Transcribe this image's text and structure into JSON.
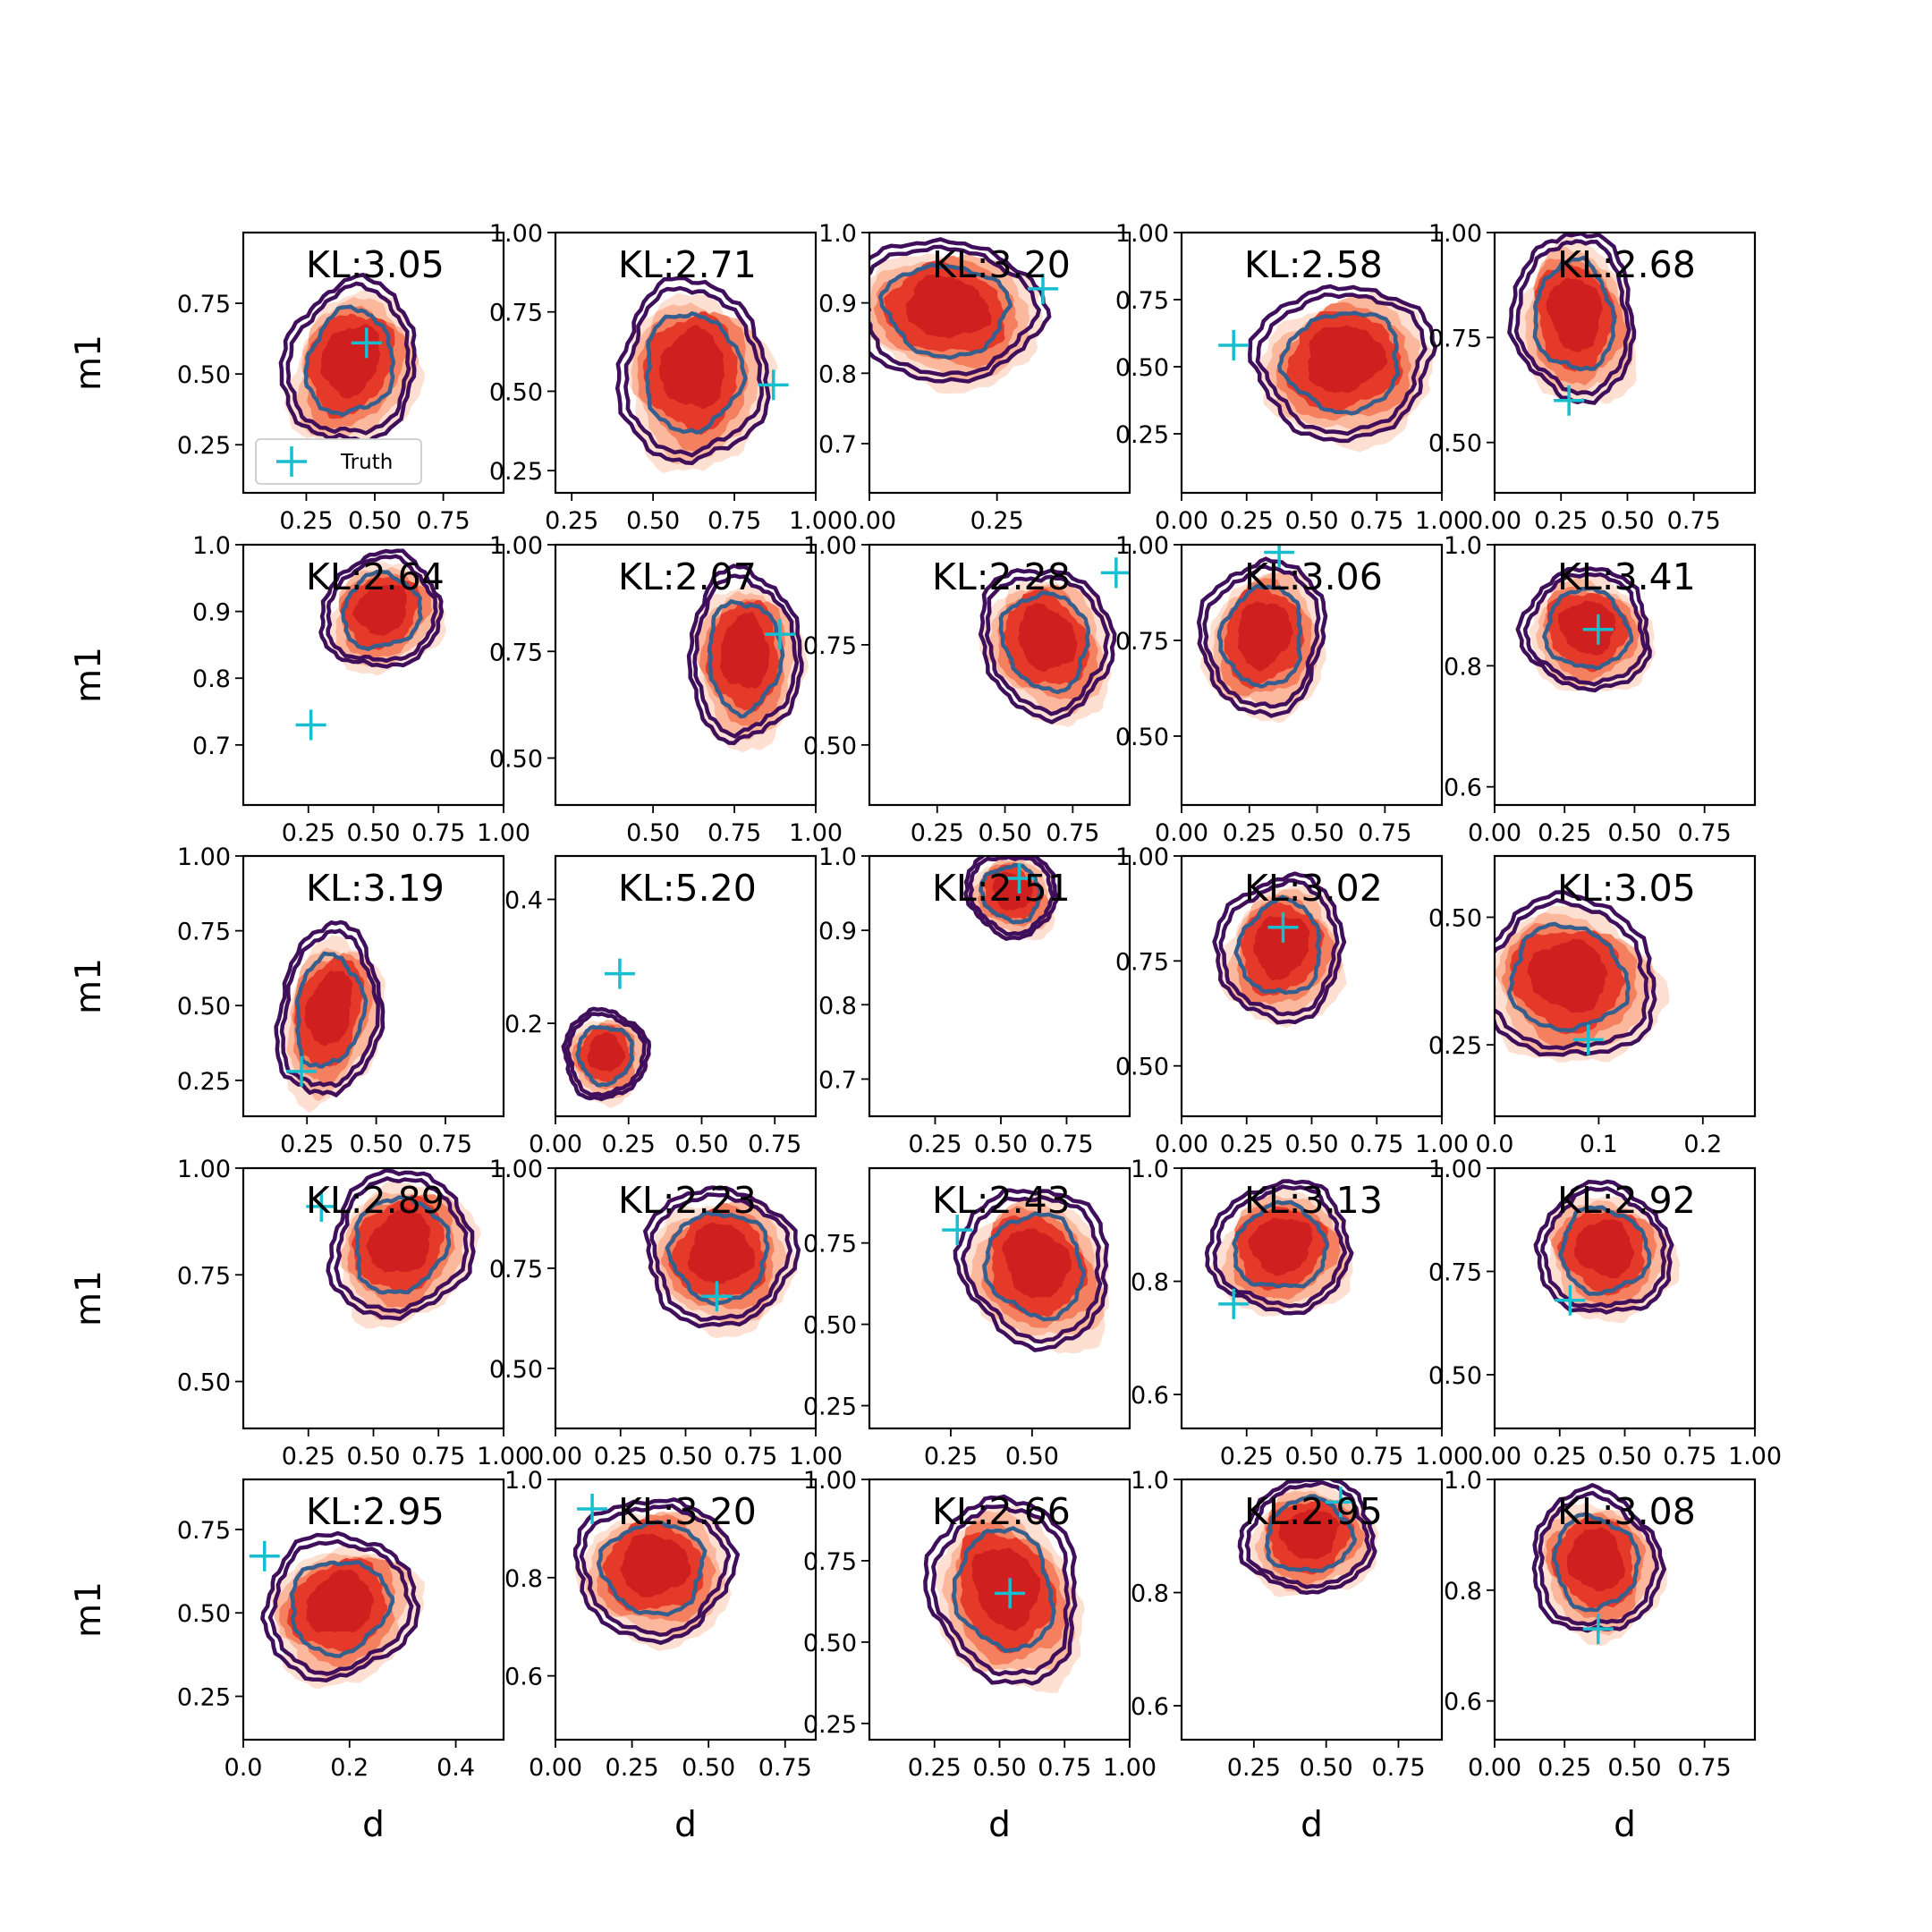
{
  "chart_data": {
    "type": "scatter",
    "grid": false,
    "colors": {
      "filled_density": [
        "#fde0d2",
        "#fbb89d",
        "#f5805f",
        "#e53a2a",
        "#cf1f1f"
      ],
      "contour_outer": "#3f0f5c",
      "contour_inner": "#365f8e",
      "truth_marker": "#17becf"
    },
    "legend": {
      "label": "Truth",
      "placement": "lower-left",
      "panel_index": 0
    },
    "panels": [
      {
        "kl": "KL:3.05",
        "xticks": [
          "0.25",
          "0.50",
          "0.75"
        ],
        "yticks": [
          "0.25",
          "0.50",
          "0.75"
        ],
        "xlim": [
          0.02,
          0.97
        ],
        "ylim": [
          0.08,
          1.0
        ],
        "truth": [
          0.47,
          0.61
        ],
        "center": [
          0.41,
          0.54
        ],
        "spread": [
          0.17,
          0.2
        ],
        "xlabel": "",
        "ylabel": "m1"
      },
      {
        "kl": "KL:2.71",
        "xticks": [
          "0.25",
          "0.50",
          "0.75",
          "1.00"
        ],
        "yticks": [
          "0.25",
          "0.50",
          "0.75",
          "1.00"
        ],
        "xlim": [
          0.2,
          1.0
        ],
        "ylim": [
          0.18,
          1.0
        ],
        "truth": [
          0.87,
          0.52
        ],
        "center": [
          0.62,
          0.56
        ],
        "spread": [
          0.16,
          0.2
        ],
        "xlabel": "",
        "ylabel": ""
      },
      {
        "kl": "KL:3.20",
        "xticks": [
          "0.00",
          "0.25"
        ],
        "yticks": [
          "0.7",
          "0.8",
          "0.9",
          "1.0"
        ],
        "xlim": [
          0.0,
          0.51
        ],
        "ylim": [
          0.63,
          1.0
        ],
        "truth": [
          0.34,
          0.92
        ],
        "center": [
          0.15,
          0.89
        ],
        "spread": [
          0.13,
          0.07
        ],
        "xlabel": "",
        "ylabel": ""
      },
      {
        "kl": "KL:2.58",
        "xticks": [
          "0.00",
          "0.25",
          "0.50",
          "0.75",
          "1.00"
        ],
        "yticks": [
          "0.25",
          "0.50",
          "0.75",
          "1.00"
        ],
        "xlim": [
          0.0,
          1.0
        ],
        "ylim": [
          0.03,
          1.0
        ],
        "truth": [
          0.2,
          0.58
        ],
        "center": [
          0.62,
          0.52
        ],
        "spread": [
          0.24,
          0.2
        ],
        "xlabel": "",
        "ylabel": ""
      },
      {
        "kl": "KL:2.68",
        "xticks": [
          "0.00",
          "0.25",
          "0.50",
          "0.75"
        ],
        "yticks": [
          "0.50",
          "0.75",
          "1.00"
        ],
        "xlim": [
          0.0,
          0.98
        ],
        "ylim": [
          0.38,
          1.0
        ],
        "truth": [
          0.28,
          0.6
        ],
        "center": [
          0.3,
          0.8
        ],
        "spread": [
          0.16,
          0.14
        ],
        "xlabel": "",
        "ylabel": ""
      },
      {
        "kl": "KL:2.64",
        "xticks": [
          "0.25",
          "0.50",
          "0.75",
          "1.00"
        ],
        "yticks": [
          "0.7",
          "0.8",
          "0.9",
          "1.0"
        ],
        "xlim": [
          0.0,
          1.0
        ],
        "ylim": [
          0.61,
          1.0
        ],
        "truth": [
          0.26,
          0.73
        ],
        "center": [
          0.53,
          0.9
        ],
        "spread": [
          0.16,
          0.06
        ],
        "xlabel": "",
        "ylabel": "m1"
      },
      {
        "kl": "KL:2.07",
        "xticks": [
          "0.50",
          "0.75",
          "1.00"
        ],
        "yticks": [
          "0.50",
          "0.75",
          "1.00"
        ],
        "xlim": [
          0.2,
          1.0
        ],
        "ylim": [
          0.39,
          1.0
        ],
        "truth": [
          0.89,
          0.79
        ],
        "center": [
          0.78,
          0.74
        ],
        "spread": [
          0.12,
          0.14
        ],
        "xlabel": "",
        "ylabel": ""
      },
      {
        "kl": "KL:2.28",
        "xticks": [
          "0.25",
          "0.50",
          "0.75",
          "1.00"
        ],
        "yticks": [
          "0.50",
          "0.75",
          "1.00"
        ],
        "xlim": [
          0.0,
          0.96
        ],
        "ylim": [
          0.35,
          1.0
        ],
        "truth": [
          0.91,
          0.93
        ],
        "center": [
          0.65,
          0.76
        ],
        "spread": [
          0.17,
          0.13
        ],
        "xlabel": "",
        "ylabel": ""
      },
      {
        "kl": "KL:3.06",
        "xticks": [
          "0.00",
          "0.25",
          "0.50",
          "0.75"
        ],
        "yticks": [
          "0.50",
          "0.75",
          "1.00"
        ],
        "xlim": [
          0.0,
          0.96
        ],
        "ylim": [
          0.32,
          1.0
        ],
        "truth": [
          0.36,
          0.98
        ],
        "center": [
          0.3,
          0.76
        ],
        "spread": [
          0.16,
          0.14
        ],
        "xlabel": "",
        "ylabel": ""
      },
      {
        "kl": "KL:3.41",
        "xticks": [
          "0.00",
          "0.25",
          "0.50",
          "0.75"
        ],
        "yticks": [
          "0.6",
          "0.8",
          "1.0"
        ],
        "xlim": [
          0.0,
          0.93
        ],
        "ylim": [
          0.57,
          1.0
        ],
        "truth": [
          0.37,
          0.86
        ],
        "center": [
          0.33,
          0.86
        ],
        "spread": [
          0.16,
          0.07
        ],
        "xlabel": "",
        "ylabel": ""
      },
      {
        "kl": "KL:3.19",
        "xticks": [
          "0.25",
          "0.50",
          "0.75"
        ],
        "yticks": [
          "0.25",
          "0.50",
          "0.75",
          "1.00"
        ],
        "xlim": [
          0.02,
          0.96
        ],
        "ylim": [
          0.13,
          1.0
        ],
        "truth": [
          0.23,
          0.28
        ],
        "center": [
          0.33,
          0.48
        ],
        "spread": [
          0.13,
          0.2
        ],
        "xlabel": "",
        "ylabel": "m1"
      },
      {
        "kl": "KL:5.20",
        "xticks": [
          "0.00",
          "0.25",
          "0.50",
          "0.75"
        ],
        "yticks": [
          "0.2",
          "0.4"
        ],
        "xlim": [
          0.0,
          0.89
        ],
        "ylim": [
          0.05,
          0.47
        ],
        "truth": [
          0.22,
          0.28
        ],
        "center": [
          0.17,
          0.15
        ],
        "spread": [
          0.1,
          0.05
        ],
        "xlabel": "",
        "ylabel": ""
      },
      {
        "kl": "KL:2.51",
        "xticks": [
          "0.25",
          "0.50",
          "0.75",
          "1.00"
        ],
        "yticks": [
          "0.7",
          "0.8",
          "0.9",
          "1.0"
        ],
        "xlim": [
          0.0,
          0.99
        ],
        "ylim": [
          0.65,
          1.0
        ],
        "truth": [
          0.57,
          0.97
        ],
        "center": [
          0.54,
          0.95
        ],
        "spread": [
          0.12,
          0.04
        ],
        "xlabel": "",
        "ylabel": ""
      },
      {
        "kl": "KL:3.02",
        "xticks": [
          "0.00",
          "0.25",
          "0.50",
          "0.75",
          "1.00"
        ],
        "yticks": [
          "0.50",
          "0.75",
          "1.00"
        ],
        "xlim": [
          0.0,
          1.0
        ],
        "ylim": [
          0.38,
          1.0
        ],
        "truth": [
          0.39,
          0.83
        ],
        "center": [
          0.38,
          0.78
        ],
        "spread": [
          0.17,
          0.12
        ],
        "xlabel": "",
        "ylabel": ""
      },
      {
        "kl": "KL:3.05",
        "xticks": [
          "0.0",
          "0.1",
          "0.2"
        ],
        "yticks": [
          "0.25",
          "0.50"
        ],
        "xlim": [
          0.0,
          0.25
        ],
        "ylim": [
          0.11,
          0.62
        ],
        "truth": [
          0.09,
          0.26
        ],
        "center": [
          0.07,
          0.38
        ],
        "spread": [
          0.06,
          0.11
        ],
        "xlabel": "",
        "ylabel": ""
      },
      {
        "kl": "KL:2.89",
        "xticks": [
          "0.25",
          "0.50",
          "0.75",
          "1.00"
        ],
        "yticks": [
          "0.50",
          "0.75",
          "1.00"
        ],
        "xlim": [
          0.0,
          1.0
        ],
        "ylim": [
          0.39,
          1.0
        ],
        "truth": [
          0.3,
          0.91
        ],
        "center": [
          0.6,
          0.82
        ],
        "spread": [
          0.19,
          0.12
        ],
        "xlabel": "",
        "ylabel": "m1"
      },
      {
        "kl": "KL:2.23",
        "xticks": [
          "0.00",
          "0.25",
          "0.50",
          "0.75",
          "1.00"
        ],
        "yticks": [
          "0.50",
          "0.75",
          "1.00"
        ],
        "xlim": [
          0.0,
          1.0
        ],
        "ylim": [
          0.35,
          1.0
        ],
        "truth": [
          0.62,
          0.68
        ],
        "center": [
          0.63,
          0.78
        ],
        "spread": [
          0.2,
          0.12
        ],
        "xlabel": "",
        "ylabel": ""
      },
      {
        "kl": "KL:2.43",
        "xticks": [
          "0.25",
          "0.50"
        ],
        "yticks": [
          "0.25",
          "0.50",
          "0.75"
        ],
        "xlim": [
          0.0,
          0.8
        ],
        "ylim": [
          0.18,
          0.98
        ],
        "truth": [
          0.27,
          0.79
        ],
        "center": [
          0.51,
          0.68
        ],
        "spread": [
          0.16,
          0.17
        ],
        "xlabel": "",
        "ylabel": ""
      },
      {
        "kl": "KL:3.13",
        "xticks": [
          "0.25",
          "0.50",
          "0.75",
          "1.00"
        ],
        "yticks": [
          "0.6",
          "0.8",
          "1.0"
        ],
        "xlim": [
          0.0,
          1.0
        ],
        "ylim": [
          0.54,
          1.0
        ],
        "truth": [
          0.2,
          0.76
        ],
        "center": [
          0.38,
          0.86
        ],
        "spread": [
          0.19,
          0.08
        ],
        "xlabel": "",
        "ylabel": ""
      },
      {
        "kl": "KL:2.92",
        "xticks": [
          "0.00",
          "0.25",
          "0.50",
          "0.75",
          "1.00"
        ],
        "yticks": [
          "0.50",
          "0.75",
          "1.00"
        ],
        "xlim": [
          0.0,
          1.0
        ],
        "ylim": [
          0.37,
          1.0
        ],
        "truth": [
          0.29,
          0.68
        ],
        "center": [
          0.42,
          0.8
        ],
        "spread": [
          0.18,
          0.11
        ],
        "xlabel": "",
        "ylabel": ""
      },
      {
        "kl": "KL:2.95",
        "xticks": [
          "0.0",
          "0.2",
          "0.4"
        ],
        "yticks": [
          "0.25",
          "0.50",
          "0.75"
        ],
        "xlim": [
          0.0,
          0.49
        ],
        "ylim": [
          0.12,
          0.9
        ],
        "truth": [
          0.04,
          0.67
        ],
        "center": [
          0.18,
          0.52
        ],
        "spread": [
          0.1,
          0.15
        ],
        "xlabel": "d",
        "ylabel": "m1"
      },
      {
        "kl": "KL:3.20",
        "xticks": [
          "0.00",
          "0.25",
          "0.50",
          "0.75"
        ],
        "yticks": [
          "0.6",
          "0.8",
          "1.0"
        ],
        "xlim": [
          0.0,
          0.85
        ],
        "ylim": [
          0.47,
          1.0
        ],
        "truth": [
          0.12,
          0.94
        ],
        "center": [
          0.32,
          0.82
        ],
        "spread": [
          0.18,
          0.1
        ],
        "xlabel": "d",
        "ylabel": ""
      },
      {
        "kl": "KL:2.66",
        "xticks": [
          "0.25",
          "0.50",
          "0.75",
          "1.00"
        ],
        "yticks": [
          "0.25",
          "0.50",
          "0.75",
          "1.00"
        ],
        "xlim": [
          0.0,
          1.0
        ],
        "ylim": [
          0.2,
          1.0
        ],
        "truth": [
          0.54,
          0.65
        ],
        "center": [
          0.52,
          0.66
        ],
        "spread": [
          0.2,
          0.2
        ],
        "xlabel": "d",
        "ylabel": ""
      },
      {
        "kl": "KL:2.95",
        "xticks": [
          "0.25",
          "0.50",
          "0.75"
        ],
        "yticks": [
          "0.6",
          "0.8",
          "1.0"
        ],
        "xlim": [
          0.0,
          0.9
        ],
        "ylim": [
          0.54,
          1.0
        ],
        "truth": [
          0.55,
          0.96
        ],
        "center": [
          0.44,
          0.9
        ],
        "spread": [
          0.16,
          0.07
        ],
        "xlabel": "d",
        "ylabel": ""
      },
      {
        "kl": "KL:3.08",
        "xticks": [
          "0.00",
          "0.25",
          "0.50",
          "0.75"
        ],
        "yticks": [
          "0.6",
          "0.8",
          "1.0"
        ],
        "xlim": [
          0.0,
          0.93
        ],
        "ylim": [
          0.53,
          1.0
        ],
        "truth": [
          0.37,
          0.73
        ],
        "center": [
          0.36,
          0.85
        ],
        "spread": [
          0.16,
          0.09
        ],
        "xlabel": "d",
        "ylabel": ""
      }
    ]
  }
}
